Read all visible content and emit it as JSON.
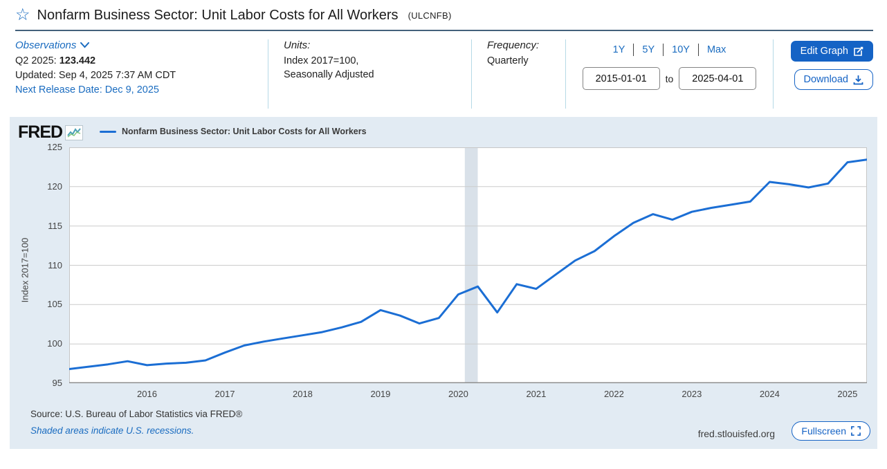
{
  "page": {
    "title": "Nonfarm Business Sector: Unit Labor Costs for All Workers",
    "series_id": "(ULCNFB)"
  },
  "meta": {
    "observations_label": "Observations",
    "latest_period": "Q2 2025:",
    "latest_value": "123.442",
    "updated": "Updated: Sep 4, 2025 7:37 AM CDT",
    "next_release": "Next Release Date: Dec 9, 2025",
    "units_label": "Units:",
    "units_line1": "Index 2017=100,",
    "units_line2": "Seasonally Adjusted",
    "frequency_label": "Frequency:",
    "frequency_value": "Quarterly"
  },
  "controls": {
    "ranges": [
      "1Y",
      "5Y",
      "10Y",
      "Max"
    ],
    "date_from": "2015-01-01",
    "to_label": "to",
    "date_to": "2025-04-01",
    "edit_graph_label": "Edit Graph",
    "download_label": "Download"
  },
  "graph": {
    "brand": "FRED",
    "legend_label": "Nonfarm Business Sector: Unit Labor Costs for All Workers",
    "y_axis_label": "Index 2017=100",
    "source_line": "Source: U.S. Bureau of Labor Statistics via FRED®",
    "recession_note": "Shaded areas indicate U.S. recessions.",
    "watermark": "fred.stlouisfed.org",
    "fullscreen_label": "Fullscreen"
  },
  "colors": {
    "line": "#1b6ed4",
    "link": "#1a6cc0",
    "button": "#1563c5",
    "graph_bg": "#e2ebf3",
    "recession_band": "#d9e1e9",
    "gridline": "#cccccc",
    "plot_border": "#c6c6c6",
    "axis_line": "#8f8f8f",
    "title_rule": "#44617b",
    "divider": "#b5d9e6"
  },
  "chart_data": {
    "type": "line",
    "title": "Nonfarm Business Sector: Unit Labor Costs for All Workers",
    "xlabel": "",
    "ylabel": "Index 2017=100",
    "ylim": [
      95,
      125
    ],
    "y_ticks": [
      125,
      120,
      115,
      110,
      105,
      100,
      95
    ],
    "x_ticks": [
      2016,
      2017,
      2018,
      2019,
      2020,
      2021,
      2022,
      2023,
      2024,
      2025
    ],
    "grid": "horizontal",
    "legend_position": "top-left",
    "frequency": "Quarterly",
    "recessions": [
      {
        "start": "2020-02-01",
        "end": "2020-04-01"
      }
    ],
    "series": [
      {
        "name": "Nonfarm Business Sector: Unit Labor Costs for All Workers",
        "points": [
          [
            "2015-01-01",
            96.8
          ],
          [
            "2015-04-01",
            97.1
          ],
          [
            "2015-07-01",
            97.4
          ],
          [
            "2015-10-01",
            97.8
          ],
          [
            "2016-01-01",
            97.3
          ],
          [
            "2016-04-01",
            97.5
          ],
          [
            "2016-07-01",
            97.6
          ],
          [
            "2016-10-01",
            97.9
          ],
          [
            "2017-01-01",
            98.9
          ],
          [
            "2017-04-01",
            99.8
          ],
          [
            "2017-07-01",
            100.3
          ],
          [
            "2017-10-01",
            100.7
          ],
          [
            "2018-01-01",
            101.1
          ],
          [
            "2018-04-01",
            101.5
          ],
          [
            "2018-07-01",
            102.1
          ],
          [
            "2018-10-01",
            102.8
          ],
          [
            "2019-01-01",
            104.3
          ],
          [
            "2019-04-01",
            103.6
          ],
          [
            "2019-07-01",
            102.6
          ],
          [
            "2019-10-01",
            103.3
          ],
          [
            "2020-01-01",
            106.3
          ],
          [
            "2020-04-01",
            107.3
          ],
          [
            "2020-07-01",
            104.0
          ],
          [
            "2020-10-01",
            107.6
          ],
          [
            "2021-01-01",
            107.0
          ],
          [
            "2021-04-01",
            108.8
          ],
          [
            "2021-07-01",
            110.6
          ],
          [
            "2021-10-01",
            111.8
          ],
          [
            "2022-01-01",
            113.7
          ],
          [
            "2022-04-01",
            115.4
          ],
          [
            "2022-07-01",
            116.5
          ],
          [
            "2022-10-01",
            115.8
          ],
          [
            "2023-01-01",
            116.8
          ],
          [
            "2023-04-01",
            117.3
          ],
          [
            "2023-07-01",
            117.7
          ],
          [
            "2023-10-01",
            118.1
          ],
          [
            "2024-01-01",
            120.6
          ],
          [
            "2024-04-01",
            120.3
          ],
          [
            "2024-07-01",
            119.9
          ],
          [
            "2024-10-01",
            120.4
          ],
          [
            "2025-01-01",
            123.1
          ],
          [
            "2025-04-01",
            123.442
          ]
        ]
      }
    ]
  }
}
